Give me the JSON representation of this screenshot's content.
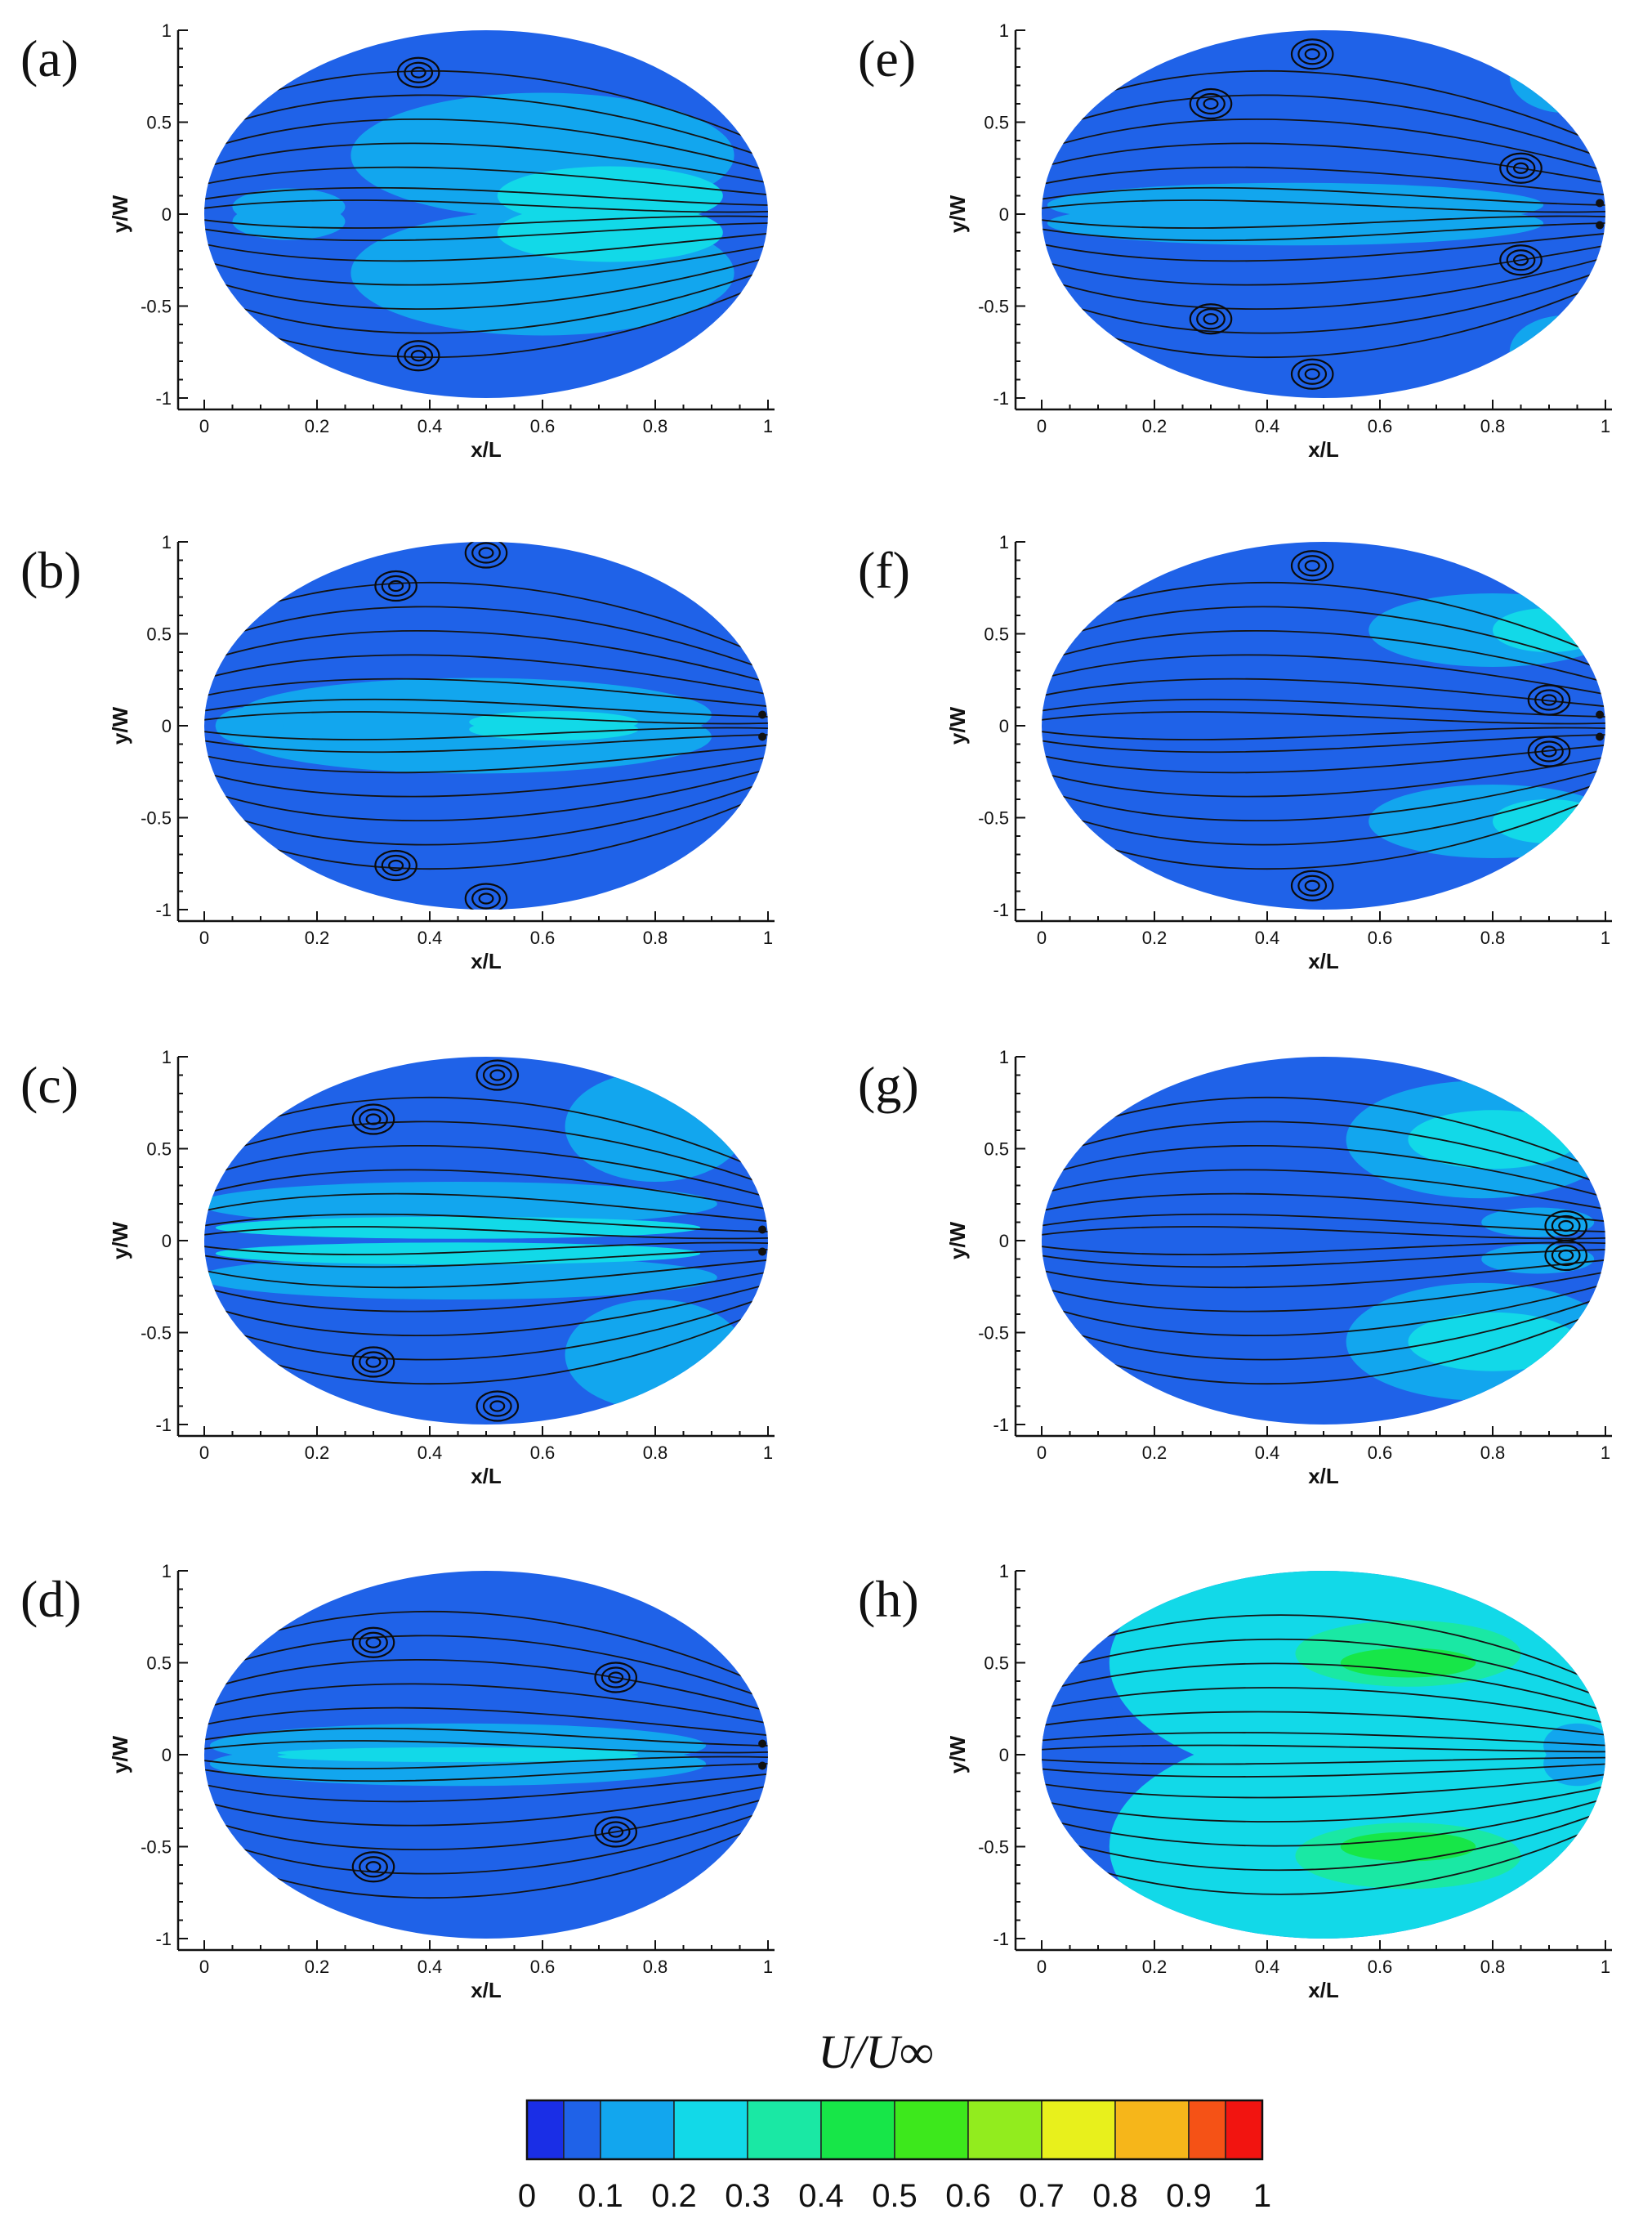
{
  "chart_data": {
    "type": "heatmap",
    "panels": [
      {
        "label": "(a)",
        "vortex_x": [
          0.38,
          0.38
        ],
        "vortex_y": [
          0.77,
          -0.77
        ],
        "node_x": []
      },
      {
        "label": "(b)",
        "vortex_x": [
          0.34,
          0.5,
          0.34,
          0.5
        ],
        "vortex_y": [
          0.76,
          0.94,
          -0.76,
          -0.94
        ],
        "node_x": [
          0.99
        ]
      },
      {
        "label": "(c)",
        "vortex_x": [
          0.3,
          0.52,
          0.3,
          0.52
        ],
        "vortex_y": [
          0.66,
          0.9,
          -0.66,
          -0.9
        ],
        "node_x": [
          0.99
        ]
      },
      {
        "label": "(d)",
        "vortex_x": [
          0.3,
          0.73,
          0.3,
          0.73
        ],
        "vortex_y": [
          0.61,
          0.42,
          -0.61,
          -0.42
        ],
        "node_x": [
          0.99
        ]
      },
      {
        "label": "(e)",
        "vortex_x": [
          0.48,
          0.3,
          0.85,
          0.48,
          0.3,
          0.85
        ],
        "vortex_y": [
          0.87,
          0.6,
          0.25,
          -0.87,
          -0.57,
          -0.25
        ],
        "node_x": [
          0.99
        ]
      },
      {
        "label": "(f)",
        "vortex_x": [
          0.48,
          0.9,
          0.48,
          0.9
        ],
        "vortex_y": [
          0.87,
          0.14,
          -0.87,
          -0.14
        ],
        "node_x": [
          0.99
        ]
      },
      {
        "label": "(g)",
        "vortex_x": [
          0.93,
          0.93
        ],
        "vortex_y": [
          0.08,
          -0.08
        ],
        "node_x": []
      },
      {
        "label": "(h)",
        "vortex_x": [],
        "vortex_y": [],
        "node_x": []
      }
    ],
    "xlabel": "x/L",
    "ylabel": "y/W",
    "xlim": [
      0,
      1
    ],
    "ylim": [
      -1,
      1
    ],
    "xticks": [
      "0",
      "0.2",
      "0.4",
      "0.6",
      "0.8",
      "1"
    ],
    "yticks": [
      "1",
      "0.5",
      "0",
      "-0.5",
      "-1"
    ],
    "colorbar": {
      "title": "U/U∞",
      "levels": [
        0,
        0.05,
        0.1,
        0.2,
        0.3,
        0.4,
        0.5,
        0.6,
        0.7,
        0.8,
        0.9,
        0.95,
        1
      ],
      "colors": [
        "#1a2ee6",
        "#1f62e8",
        "#12a6ee",
        "#12d9e8",
        "#1ae8a4",
        "#17e648",
        "#3de81c",
        "#92ec1e",
        "#e8f01c",
        "#f6b61a",
        "#f55216",
        "#f21410"
      ],
      "labels": [
        "0",
        "0.1",
        "0.2",
        "0.3",
        "0.4",
        "0.5",
        "0.6",
        "0.7",
        "0.8",
        "0.9",
        "1"
      ]
    }
  }
}
